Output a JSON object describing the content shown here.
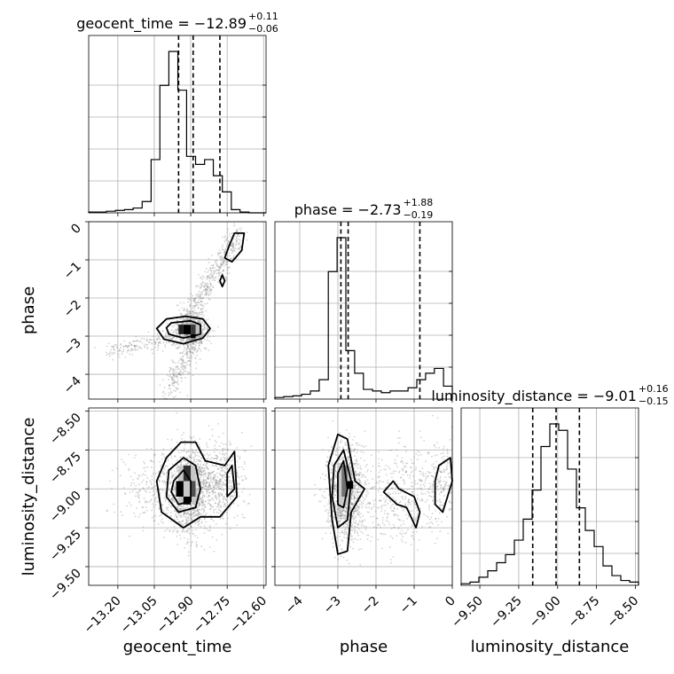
{
  "chart_data": {
    "type": "corner",
    "parameters": [
      {
        "name": "geocent_time",
        "range": [
          -13.32,
          -12.59
        ],
        "ticks": [
          -13.2,
          -13.05,
          -12.9,
          -12.75,
          -12.6
        ],
        "tick_labels": [
          "−13.20",
          "−13.05",
          "−12.90",
          "−12.75",
          "−12.60"
        ]
      },
      {
        "name": "phase",
        "range": [
          -4.65,
          0.0
        ],
        "ticks": [
          -4,
          -3,
          -2,
          -1,
          0
        ],
        "tick_labels": [
          "−4",
          "−3",
          "−2",
          "−1",
          "0"
        ]
      },
      {
        "name": "luminosity_distance",
        "range": [
          -9.62,
          -8.48
        ],
        "ticks": [
          -9.5,
          -9.25,
          -9.0,
          -8.75,
          -8.5
        ],
        "tick_labels": [
          "−9.50",
          "−9.25",
          "−9.00",
          "−8.75",
          "−8.50"
        ]
      }
    ],
    "titles": [
      {
        "main": "geocent_time = −12.89",
        "plus": "+0.11",
        "minus": "−0.06"
      },
      {
        "main": "phase = −2.73",
        "plus": "+1.88",
        "minus": "−0.19"
      },
      {
        "main": "luminosity_distance = −9.01",
        "plus": "+0.16",
        "minus": "−0.15"
      }
    ],
    "axis_labels": [
      "geocent_time",
      "phase",
      "luminosity_distance"
    ],
    "quantiles": [
      [
        -12.95,
        -12.89,
        -12.78
      ],
      [
        -2.92,
        -2.73,
        -0.85
      ],
      [
        -9.16,
        -9.01,
        -8.86
      ]
    ],
    "histograms": [
      {
        "edges": [
          -13.32,
          -13.283,
          -13.247,
          -13.21,
          -13.173,
          -13.137,
          -13.1,
          -13.063,
          -13.027,
          -12.99,
          -12.953,
          -12.917,
          -12.88,
          -12.843,
          -12.807,
          -12.77,
          -12.733,
          -12.697,
          -12.66,
          -12.623,
          -12.59
        ],
        "counts": [
          0.005,
          0.005,
          0.01,
          0.015,
          0.02,
          0.03,
          0.07,
          0.33,
          0.79,
          1.0,
          0.76,
          0.35,
          0.3,
          0.33,
          0.23,
          0.13,
          0.02,
          0.005,
          0.0,
          0.0
        ]
      },
      {
        "edges": [
          -4.65,
          -4.42,
          -4.18,
          -3.95,
          -3.72,
          -3.49,
          -3.25,
          -3.02,
          -2.79,
          -2.56,
          -2.33,
          -2.09,
          -1.86,
          -1.63,
          -1.4,
          -1.16,
          -0.93,
          -0.7,
          -0.47,
          -0.23,
          0.0
        ],
        "counts": [
          0.01,
          0.015,
          0.02,
          0.03,
          0.05,
          0.12,
          0.79,
          1.0,
          0.3,
          0.16,
          0.06,
          0.05,
          0.04,
          0.05,
          0.05,
          0.07,
          0.12,
          0.16,
          0.19,
          0.08
        ]
      },
      {
        "edges": [
          -9.62,
          -9.563,
          -9.506,
          -9.449,
          -9.392,
          -9.335,
          -9.278,
          -9.221,
          -9.164,
          -9.107,
          -9.05,
          -8.993,
          -8.936,
          -8.879,
          -8.822,
          -8.765,
          -8.708,
          -8.651,
          -8.594,
          -8.537,
          -8.48
        ],
        "counts": [
          0.01,
          0.02,
          0.05,
          0.09,
          0.14,
          0.19,
          0.28,
          0.41,
          0.59,
          0.86,
          1.0,
          0.96,
          0.72,
          0.48,
          0.34,
          0.24,
          0.12,
          0.06,
          0.03,
          0.02
        ]
      }
    ],
    "grid": true,
    "colors": {
      "samples": "#808080",
      "contour": "#000000",
      "hist": "#000000",
      "grid": "#b0b0b0"
    }
  }
}
